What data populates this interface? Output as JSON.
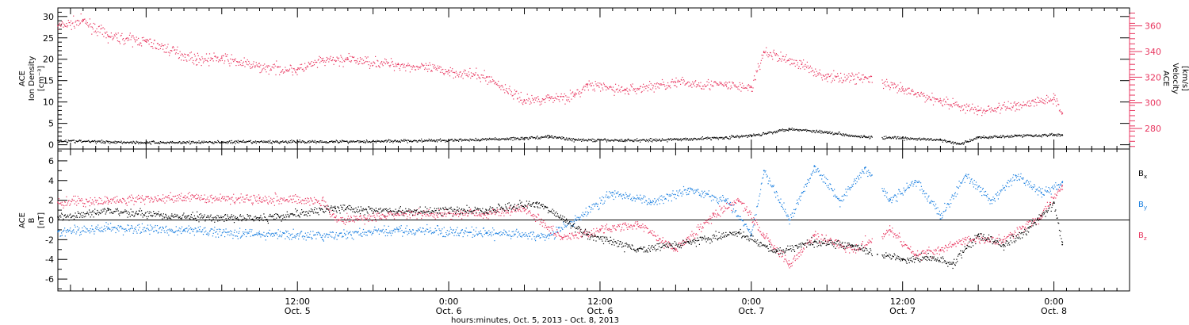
{
  "colors": {
    "black": "#000000",
    "pink": "#e8365f",
    "blue": "#1a7fe0",
    "axis": "#000000"
  },
  "x_axis": {
    "title": "hours:minutes, Oct.  5, 2013 - Oct.  8, 2013",
    "range": [
      "2013-10-04 17:00",
      "2013-10-08 06:00"
    ],
    "ticks": [
      {
        "time": "2013-10-05 12:00",
        "line1": "12:00",
        "line2": "Oct. 5"
      },
      {
        "time": "2013-10-06 00:00",
        "line1": "0:00",
        "line2": "Oct. 6"
      },
      {
        "time": "2013-10-06 12:00",
        "line1": "12:00",
        "line2": "Oct. 6"
      },
      {
        "time": "2013-10-07 00:00",
        "line1": "0:00",
        "line2": "Oct. 7"
      },
      {
        "time": "2013-10-07 12:00",
        "line1": "12:00",
        "line2": "Oct. 7"
      },
      {
        "time": "2013-10-08 00:00",
        "line1": "0:00",
        "line2": "Oct. 8"
      }
    ]
  },
  "chart_data": [
    {
      "type": "scatter",
      "panel": "top",
      "ylabel_left": [
        "ACE",
        "Ion Density",
        "[cm⁻³]"
      ],
      "ylabel_right": [
        "ACE",
        "Velocity",
        "[km/s]"
      ],
      "ylim_left": [
        -1,
        32
      ],
      "yticks_left": [
        0,
        5,
        10,
        15,
        20,
        25,
        30
      ],
      "ylim_right": [
        264,
        374
      ],
      "yticks_right": [
        280,
        300,
        320,
        340,
        360
      ],
      "series": [
        {
          "axis": "left",
          "color": "black",
          "x": [
            "2013-10-04 17:00",
            "2013-10-05 00:00",
            "2013-10-05 06:00",
            "2013-10-05 12:00",
            "2013-10-05 18:00",
            "2013-10-06 00:00",
            "2013-10-06 06:00",
            "2013-10-06 08:00",
            "2013-10-06 10:00",
            "2013-10-06 14:00",
            "2013-10-06 18:00",
            "2013-10-06 22:00",
            "2013-10-07 00:00",
            "2013-10-07 03:00",
            "2013-10-07 06:00",
            "2013-10-07 09:00",
            "2013-10-07 12:00",
            "2013-10-07 15:00",
            "2013-10-07 16:30",
            "2013-10-07 18:00",
            "2013-10-07 21:00",
            "2013-10-08 00:00",
            "2013-10-08 00:40"
          ],
          "values": [
            1.0,
            0.6,
            0.7,
            0.8,
            0.9,
            1.1,
            1.6,
            2.0,
            1.2,
            1.1,
            1.3,
            1.8,
            2.2,
            3.8,
            3.0,
            1.9,
            1.6,
            1.2,
            0.2,
            1.8,
            2.2,
            2.4,
            2.3
          ]
        },
        {
          "axis": "right",
          "color": "pink",
          "x": [
            "2013-10-04 17:00",
            "2013-10-04 19:00",
            "2013-10-04 21:00",
            "2013-10-05 00:00",
            "2013-10-05 04:00",
            "2013-10-05 06:00",
            "2013-10-05 09:00",
            "2013-10-05 12:00",
            "2013-10-05 14:00",
            "2013-10-05 16:00",
            "2013-10-05 20:00",
            "2013-10-06 00:00",
            "2013-10-06 03:00",
            "2013-10-06 06:00",
            "2013-10-06 08:00",
            "2013-10-06 10:00",
            "2013-10-06 11:00",
            "2013-10-06 14:00",
            "2013-10-06 18:00",
            "2013-10-06 22:00",
            "2013-10-07 00:00",
            "2013-10-07 01:00",
            "2013-10-07 04:00",
            "2013-10-07 06:00",
            "2013-10-07 09:00",
            "2013-10-07 12:00",
            "2013-10-07 15:00",
            "2013-10-07 18:00",
            "2013-10-07 21:00",
            "2013-10-08 00:00",
            "2013-10-08 00:40"
          ],
          "values": [
            360,
            364,
            352,
            348,
            334,
            335,
            328,
            326,
            333,
            334,
            330,
            325,
            320,
            302,
            304,
            306,
            314,
            310,
            316,
            314,
            312,
            340,
            330,
            320,
            320,
            310,
            302,
            294,
            298,
            304,
            292
          ]
        }
      ]
    },
    {
      "type": "scatter",
      "panel": "bottom",
      "ylabel_left": [
        "ACE",
        "B",
        "[nT]"
      ],
      "ylim": [
        -7.2,
        7.2
      ],
      "yticks": [
        -6,
        -4,
        -2,
        0,
        2,
        4,
        6
      ],
      "zero_line": true,
      "legend_position": "right",
      "series": [
        {
          "name": "B",
          "subscript": "x",
          "color": "black",
          "x": [
            "2013-10-04 17:00",
            "2013-10-04 21:00",
            "2013-10-05 02:00",
            "2013-10-05 09:00",
            "2013-10-05 15:00",
            "2013-10-05 20:00",
            "2013-10-06 03:00",
            "2013-10-06 07:00",
            "2013-10-06 11:00",
            "2013-10-06 15:00",
            "2013-10-06 19:00",
            "2013-10-06 23:00",
            "2013-10-07 02:00",
            "2013-10-07 05:00",
            "2013-10-07 08:00",
            "2013-10-07 10:00",
            "2013-10-07 12:00",
            "2013-10-07 14:00",
            "2013-10-07 16:00",
            "2013-10-07 18:00",
            "2013-10-07 20:00",
            "2013-10-07 22:00",
            "2013-10-08 00:00",
            "2013-10-08 00:40"
          ],
          "values": [
            0.3,
            1.0,
            0.4,
            0.2,
            1.2,
            0.9,
            1.0,
            1.8,
            -1.5,
            -3.0,
            -2.2,
            -1.3,
            -3.2,
            -2.2,
            -2.6,
            -3.5,
            -4.0,
            -3.8,
            -4.3,
            -1.5,
            -2.5,
            -0.8,
            1.8,
            -2.5
          ]
        },
        {
          "name": "B",
          "subscript": "y",
          "color": "blue",
          "x": [
            "2013-10-04 17:00",
            "2013-10-04 21:00",
            "2013-10-05 03:00",
            "2013-10-05 09:00",
            "2013-10-05 14:00",
            "2013-10-05 20:00",
            "2013-10-06 03:00",
            "2013-10-06 08:00",
            "2013-10-06 10:00",
            "2013-10-06 13:00",
            "2013-10-06 16:00",
            "2013-10-06 19:00",
            "2013-10-06 22:00",
            "2013-10-07 00:00",
            "2013-10-07 01:00",
            "2013-10-07 03:00",
            "2013-10-07 05:00",
            "2013-10-07 07:00",
            "2013-10-07 09:00",
            "2013-10-07 11:00",
            "2013-10-07 13:00",
            "2013-10-07 15:00",
            "2013-10-07 17:00",
            "2013-10-07 19:00",
            "2013-10-07 21:00",
            "2013-10-07 23:00",
            "2013-10-08 00:40"
          ],
          "values": [
            -1.2,
            -0.8,
            -1.0,
            -1.4,
            -1.6,
            -1.0,
            -1.3,
            -1.6,
            0.0,
            2.8,
            1.8,
            3.2,
            2.0,
            -1.4,
            5.0,
            0.0,
            5.5,
            2.0,
            5.3,
            2.0,
            4.0,
            0.5,
            4.5,
            2.0,
            4.5,
            2.8,
            3.8
          ]
        },
        {
          "name": "B",
          "subscript": "z",
          "color": "pink",
          "x": [
            "2013-10-04 17:00",
            "2013-10-04 21:00",
            "2013-10-05 03:00",
            "2013-10-05 09:00",
            "2013-10-05 14:00",
            "2013-10-05 15:00",
            "2013-10-05 20:00",
            "2013-10-06 03:00",
            "2013-10-06 06:00",
            "2013-10-06 09:00",
            "2013-10-06 12:00",
            "2013-10-06 15:00",
            "2013-10-06 18:00",
            "2013-10-06 21:00",
            "2013-10-06 23:00",
            "2013-10-07 01:00",
            "2013-10-07 03:00",
            "2013-10-07 05:00",
            "2013-10-07 08:00",
            "2013-10-07 11:00",
            "2013-10-07 13:00",
            "2013-10-07 15:00",
            "2013-10-07 17:00",
            "2013-10-07 20:00",
            "2013-10-07 23:00",
            "2013-10-08 00:40"
          ],
          "values": [
            1.8,
            2.0,
            2.3,
            2.2,
            2.0,
            0.0,
            0.6,
            0.7,
            1.2,
            -1.8,
            -1.0,
            -0.4,
            -3.0,
            0.5,
            2.0,
            -1.5,
            -4.5,
            -1.5,
            -3.0,
            -1.0,
            -3.5,
            -3.0,
            -2.0,
            -2.0,
            0.5,
            3.5
          ]
        }
      ]
    }
  ]
}
